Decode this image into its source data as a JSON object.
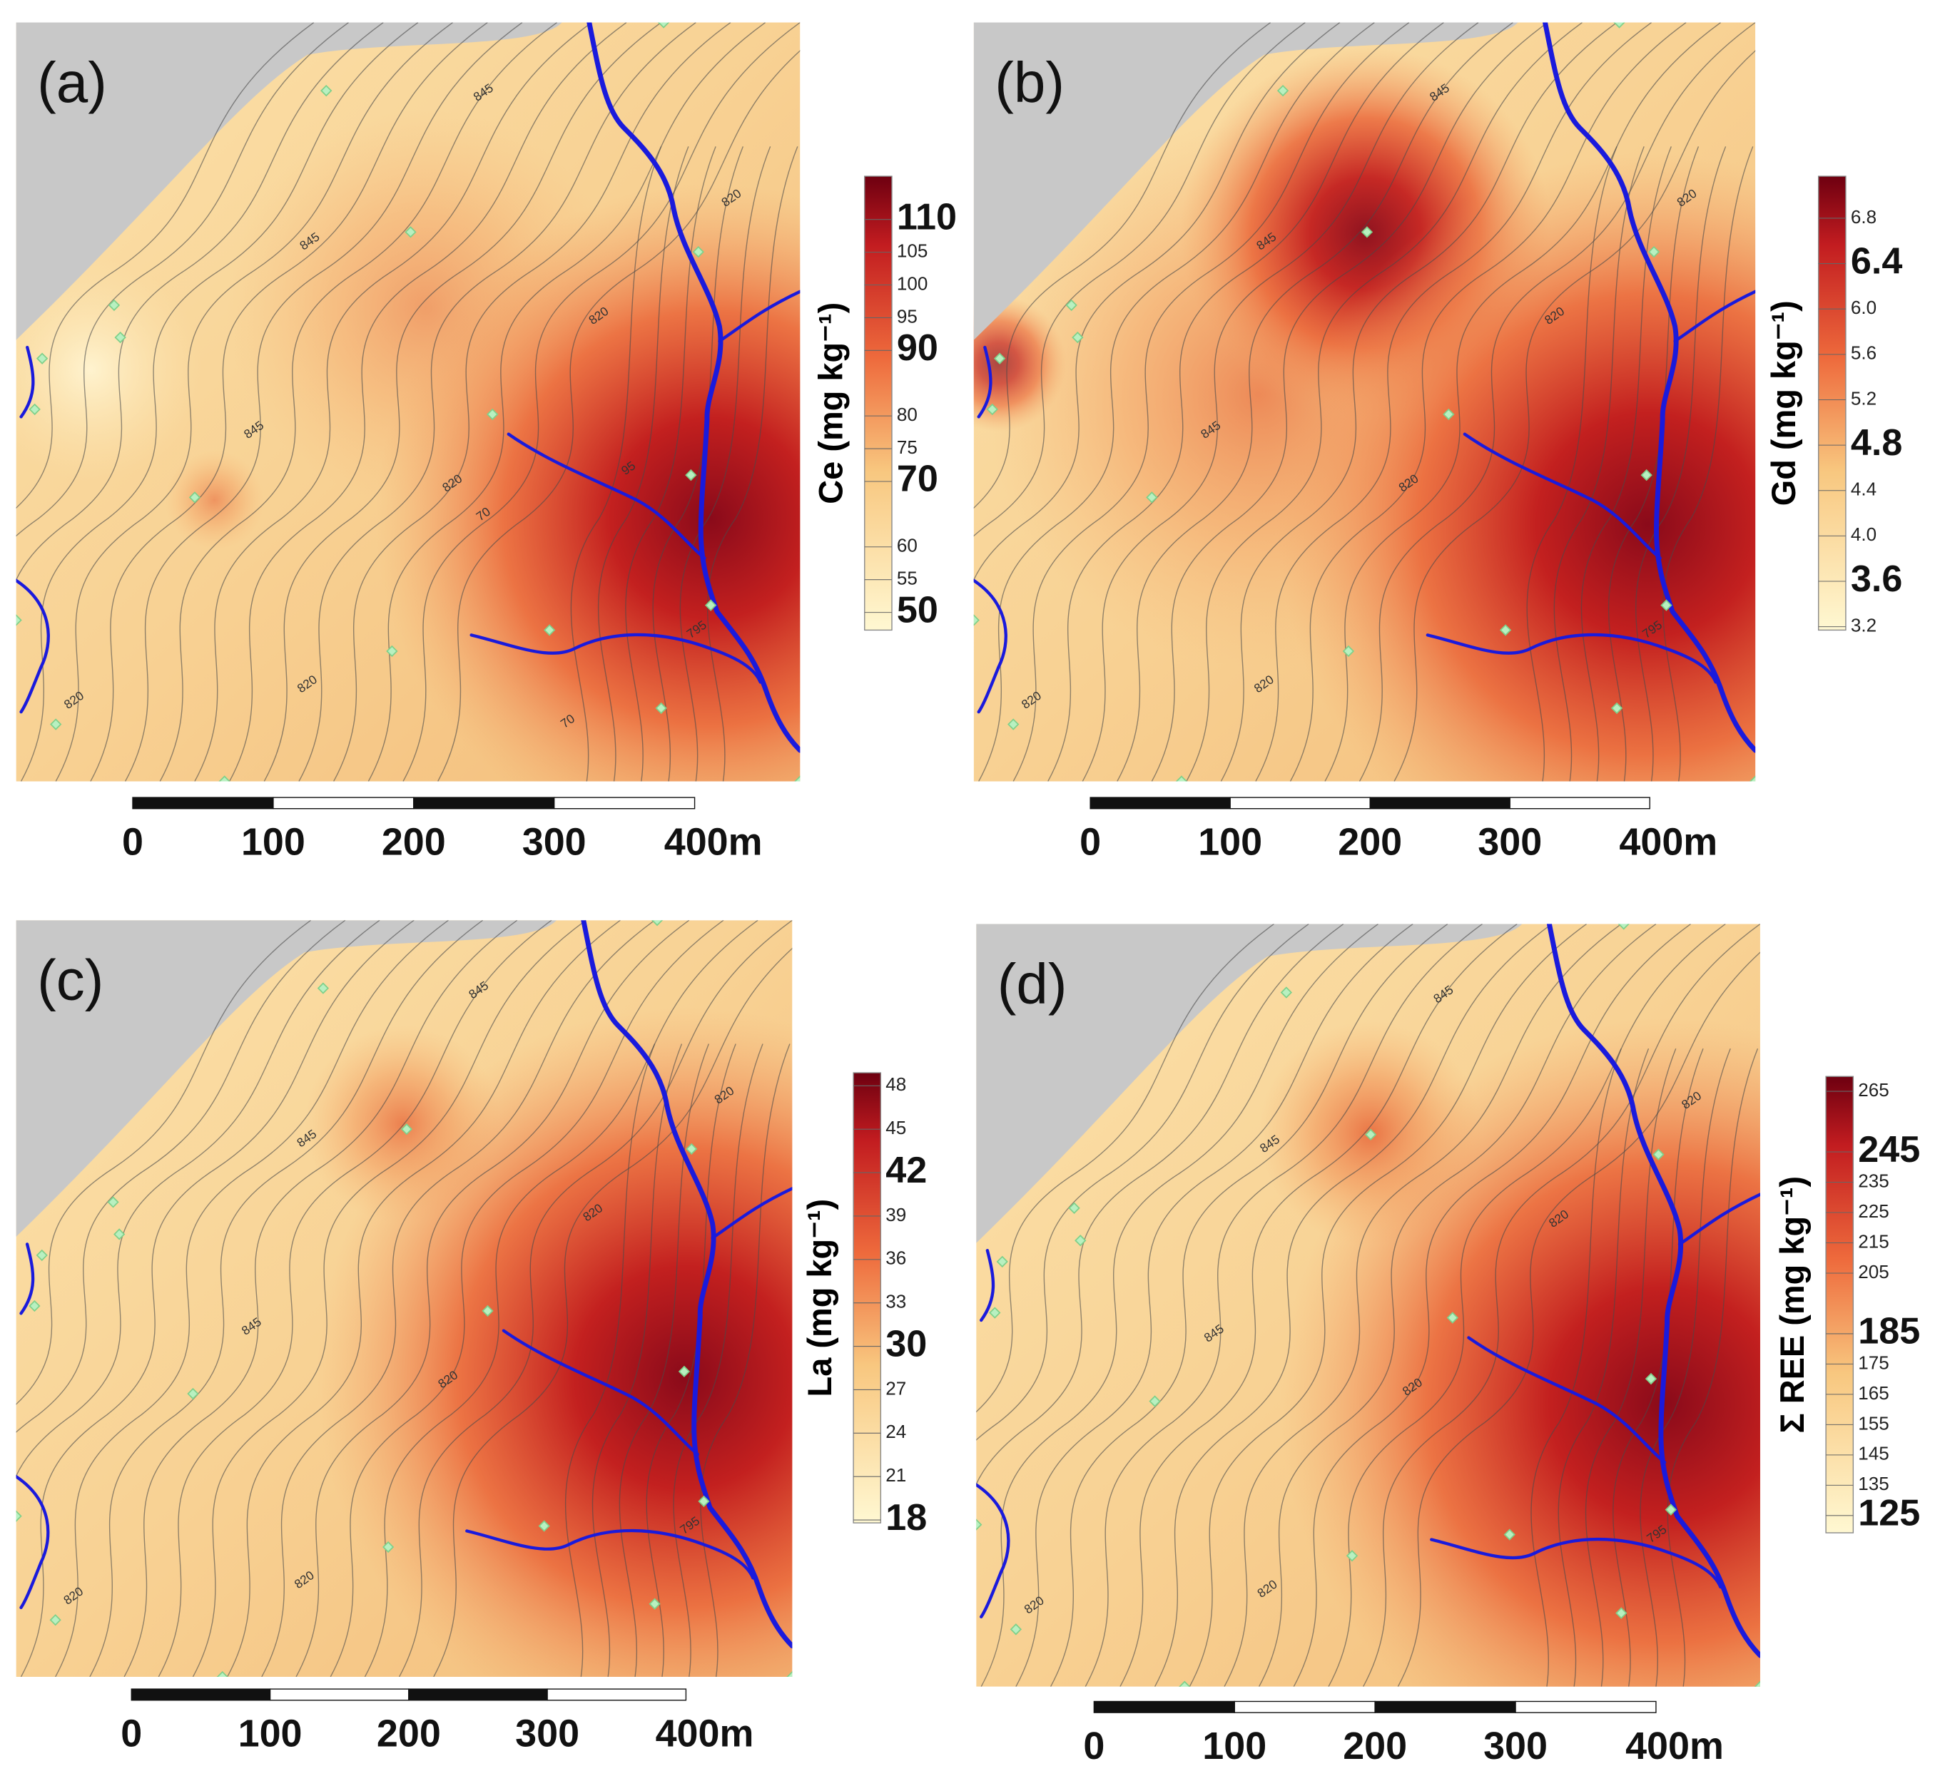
{
  "panels": [
    {
      "label": "(a)",
      "contour_labels": [
        "845",
        "845",
        "845",
        "820",
        "820",
        "820",
        "70",
        "95",
        "795",
        "820",
        "70",
        "820"
      ],
      "colorbar": {
        "title": "Ce (mg kg⁻¹)",
        "lim": [
          47.3,
          116.6
        ],
        "major_ticks": [
          50,
          70,
          90,
          110
        ],
        "minor_ticks": [
          55,
          60,
          75,
          80,
          95,
          100,
          105
        ]
      },
      "scale_bar": [
        0,
        100,
        200,
        300,
        {
          "value": 400,
          "label": "400m"
        }
      ]
    },
    {
      "label": "(b)",
      "contour_labels": [
        "845",
        "845",
        "845",
        "820",
        "820",
        "820",
        "795",
        "820",
        "820"
      ],
      "colorbar": {
        "title": "Gd (mg kg⁻¹)",
        "lim": [
          3.17,
          7.17
        ],
        "major_ticks": [
          3.6,
          4.8,
          6.4
        ],
        "minor_ticks": [
          3.2,
          {
            "value": 4,
            "label": "4.0"
          },
          4.4,
          5.2,
          5.6,
          {
            "value": 6,
            "label": "6.0"
          },
          6.8
        ]
      },
      "scale_bar": [
        0,
        100,
        200,
        300,
        {
          "value": 400,
          "label": "400m"
        }
      ]
    },
    {
      "label": "(c)",
      "contour_labels": [
        "845",
        "845",
        "845",
        "820",
        "820",
        "820",
        "795",
        "820",
        "820"
      ],
      "colorbar": {
        "title": "La (mg kg⁻¹)",
        "lim": [
          17.8,
          48.9
        ],
        "major_ticks": [
          18,
          30,
          42
        ],
        "minor_ticks": [
          21,
          24,
          27,
          33,
          36,
          39,
          45,
          48
        ]
      },
      "scale_bar": [
        0,
        100,
        200,
        300,
        {
          "value": 400,
          "label": "400m"
        }
      ]
    },
    {
      "label": "(d)",
      "contour_labels": [
        "845",
        "845",
        "845",
        "820",
        "820",
        "820",
        "795",
        "820",
        "820"
      ],
      "colorbar": {
        "title": "Σ REE (mg kg⁻¹)",
        "lim": [
          119.3,
          269.9
        ],
        "major_ticks": [
          125,
          185,
          245
        ],
        "minor_ticks": [
          135,
          145,
          155,
          165,
          175,
          205,
          215,
          225,
          235,
          265
        ]
      },
      "scale_bar": [
        0,
        100,
        200,
        300,
        {
          "value": 400,
          "label": "400m"
        }
      ]
    }
  ]
}
